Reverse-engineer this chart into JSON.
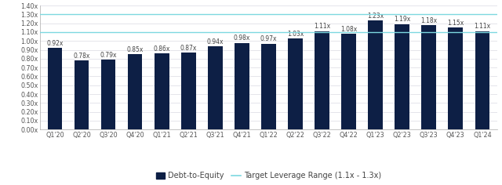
{
  "categories": [
    "Q1'20",
    "Q2'20",
    "Q3'20",
    "Q4'20",
    "Q1'21",
    "Q2'21",
    "Q3'21",
    "Q4'21",
    "Q1'22",
    "Q2'22",
    "Q3'22",
    "Q4'22",
    "Q1'23",
    "Q2'23",
    "Q3'23",
    "Q4'23",
    "Q1'24"
  ],
  "values": [
    0.92,
    0.78,
    0.79,
    0.85,
    0.86,
    0.87,
    0.94,
    0.98,
    0.97,
    1.03,
    1.11,
    1.08,
    1.23,
    1.19,
    1.18,
    1.15,
    1.11
  ],
  "bar_color": "#0d1f45",
  "target_low": 1.1,
  "target_high": 1.3,
  "target_color": "#7dd8e0",
  "target_label": "Target Leverage Range (1.1x - 1.3x)",
  "bar_label": "Debt-to-Equity",
  "ylim": [
    0,
    1.4
  ],
  "yticks": [
    0.0,
    0.1,
    0.2,
    0.3,
    0.4,
    0.5,
    0.6,
    0.7,
    0.8,
    0.9,
    1.0,
    1.1,
    1.2,
    1.3,
    1.4
  ],
  "ytick_labels": [
    "0.00x",
    "0.10x",
    "0.20x",
    "0.30x",
    "0.40x",
    "0.50x",
    "0.60x",
    "0.70x",
    "0.80x",
    "0.90x",
    "1.00x",
    "1.10x",
    "1.20x",
    "1.30x",
    "1.40x"
  ],
  "background_color": "#ffffff",
  "plot_bg_color": "#ffffff",
  "grid_color": "#e0e0e8",
  "label_fontsize": 5.5,
  "tick_fontsize": 5.8,
  "legend_fontsize": 7.0,
  "bar_width": 0.55
}
